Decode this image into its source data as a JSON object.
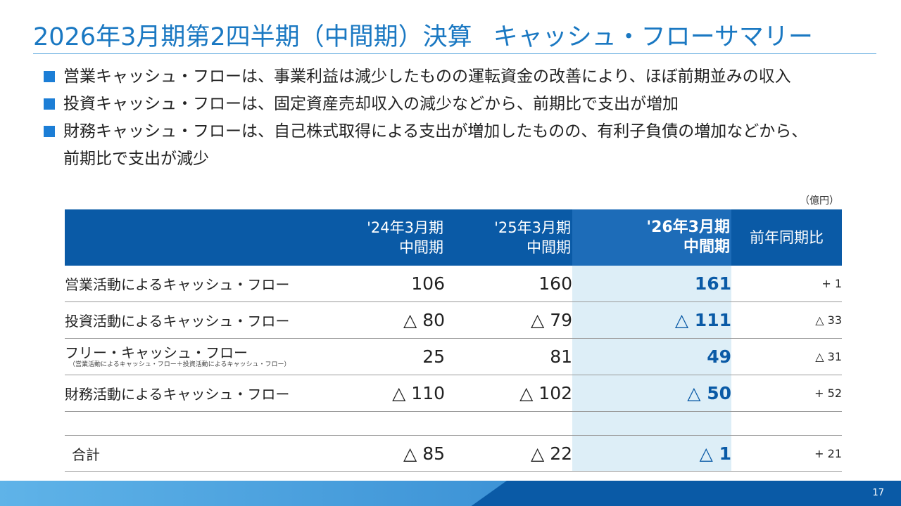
{
  "title_main": "2026年3月期第2四半期（中間期）決算",
  "title_sub": "キャッシュ・フローサマリー",
  "bullets": [
    "営業キャッシュ・フローは、事業利益は減少したものの運転資金の改善により、ほぼ前期並みの収入",
    "投資キャッシュ・フローは、固定資産売却収入の減少などから、前期比で支出が増加",
    "財務キャッシュ・フローは、自己株式取得による支出が増加したものの、有利子負債の増加などから、",
    "前期比で支出が減少"
  ],
  "unit": "（億円）",
  "table": {
    "headers": [
      {
        "line1": "'24年3月期",
        "line2": "中間期"
      },
      {
        "line1": "'25年3月期",
        "line2": "中間期"
      },
      {
        "line1": "'26年3月期",
        "line2": "中間期"
      },
      {
        "line1": "前年同期比",
        "line2": ""
      }
    ],
    "rows": [
      {
        "label": "営業活動によるキャッシュ・フロー",
        "sub": "",
        "v1": "106",
        "v2": "160",
        "v3": "161",
        "yoy": "+ 1"
      },
      {
        "label": "投資活動によるキャッシュ・フロー",
        "sub": "",
        "v1": "△ 80",
        "v2": "△ 79",
        "v3": "△ 111",
        "yoy": "△ 33"
      },
      {
        "label": "フリー・キャッシュ・フロー",
        "sub": "（営業活動によるキャッシュ・フロー＋投資活動によるキャッシュ・フロー）",
        "v1": "25",
        "v2": "81",
        "v3": "49",
        "yoy": "△ 31"
      },
      {
        "label": "財務活動によるキャッシュ・フロー",
        "sub": "",
        "v1": "△ 110",
        "v2": "△ 102",
        "v3": "△ 50",
        "yoy": "+ 52"
      }
    ],
    "total": {
      "label": "合計",
      "v1": "△ 85",
      "v2": "△ 22",
      "v3": "△ 1",
      "yoy": "+ 21"
    }
  },
  "page_number": "17",
  "colors": {
    "title": "#1a78c2",
    "header_bg": "#0a5aa6",
    "highlight_bg": "#ddeef7",
    "highlight_text": "#0a5aa6",
    "bullet": "#1c7ed6"
  }
}
